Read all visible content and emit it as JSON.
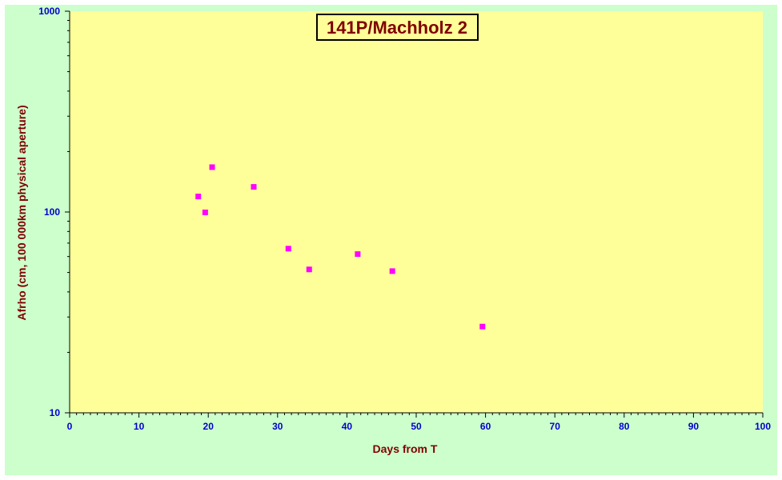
{
  "chart_data": {
    "type": "scatter",
    "title": "141P/Machholz 2",
    "xlabel": "Days from  T",
    "ylabel": "Afrho (cm, 100 000km physical aperture)",
    "xlim": [
      0,
      100
    ],
    "ylim": [
      10,
      1000
    ],
    "yscale": "log",
    "x_ticks": [
      "0",
      "10",
      "20",
      "30",
      "40",
      "50",
      "60",
      "70",
      "80",
      "90",
      "100"
    ],
    "y_ticks": [
      "10",
      "100",
      "1000"
    ],
    "grid": false,
    "legend": "none",
    "series": [
      {
        "color": "#ff00ff",
        "marker": "square",
        "points": [
          {
            "x": 18.5,
            "y": 120
          },
          {
            "x": 19.5,
            "y": 100
          },
          {
            "x": 20.5,
            "y": 168
          },
          {
            "x": 26.5,
            "y": 134
          },
          {
            "x": 31.5,
            "y": 66
          },
          {
            "x": 34.5,
            "y": 52
          },
          {
            "x": 41.5,
            "y": 62
          },
          {
            "x": 46.5,
            "y": 51
          },
          {
            "x": 59.5,
            "y": 27
          }
        ]
      }
    ]
  },
  "colors": {
    "outer_background": "#ccffcc",
    "plot_background": "#ffff99",
    "axis_text": "#0000cc",
    "title_text": "#800000",
    "marker": "#ff00ff"
  }
}
